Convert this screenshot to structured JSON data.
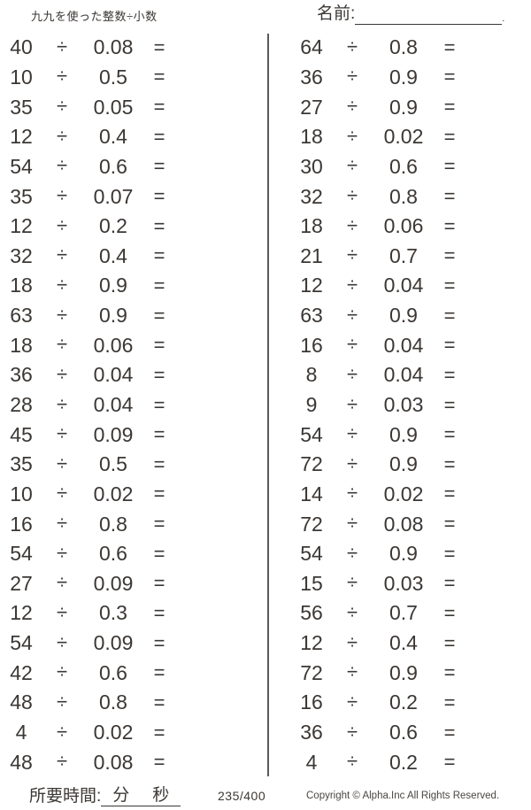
{
  "colors": {
    "ink": "#3b3734",
    "divider": "#5a5a5a",
    "background": "#ffffff"
  },
  "header": {
    "title": "九九を使った整数÷小数",
    "name_label": "名前:",
    "name_line_end": "."
  },
  "problems": {
    "divide_symbol": "÷",
    "equals_symbol": "=",
    "left": [
      {
        "dividend": "40",
        "divisor": "0.08"
      },
      {
        "dividend": "10",
        "divisor": "0.5"
      },
      {
        "dividend": "35",
        "divisor": "0.05"
      },
      {
        "dividend": "12",
        "divisor": "0.4"
      },
      {
        "dividend": "54",
        "divisor": "0.6"
      },
      {
        "dividend": "35",
        "divisor": "0.07"
      },
      {
        "dividend": "12",
        "divisor": "0.2"
      },
      {
        "dividend": "32",
        "divisor": "0.4"
      },
      {
        "dividend": "18",
        "divisor": "0.9"
      },
      {
        "dividend": "63",
        "divisor": "0.9"
      },
      {
        "dividend": "18",
        "divisor": "0.06"
      },
      {
        "dividend": "36",
        "divisor": "0.04"
      },
      {
        "dividend": "28",
        "divisor": "0.04"
      },
      {
        "dividend": "45",
        "divisor": "0.09"
      },
      {
        "dividend": "35",
        "divisor": "0.5"
      },
      {
        "dividend": "10",
        "divisor": "0.02"
      },
      {
        "dividend": "16",
        "divisor": "0.8"
      },
      {
        "dividend": "54",
        "divisor": "0.6"
      },
      {
        "dividend": "27",
        "divisor": "0.09"
      },
      {
        "dividend": "12",
        "divisor": "0.3"
      },
      {
        "dividend": "54",
        "divisor": "0.09"
      },
      {
        "dividend": "42",
        "divisor": "0.6"
      },
      {
        "dividend": "48",
        "divisor": "0.8"
      },
      {
        "dividend": "4",
        "divisor": "0.02"
      },
      {
        "dividend": "48",
        "divisor": "0.08"
      }
    ],
    "right": [
      {
        "dividend": "64",
        "divisor": "0.8"
      },
      {
        "dividend": "36",
        "divisor": "0.9"
      },
      {
        "dividend": "27",
        "divisor": "0.9"
      },
      {
        "dividend": "18",
        "divisor": "0.02"
      },
      {
        "dividend": "30",
        "divisor": "0.6"
      },
      {
        "dividend": "32",
        "divisor": "0.8"
      },
      {
        "dividend": "18",
        "divisor": "0.06"
      },
      {
        "dividend": "21",
        "divisor": "0.7"
      },
      {
        "dividend": "12",
        "divisor": "0.04"
      },
      {
        "dividend": "63",
        "divisor": "0.9"
      },
      {
        "dividend": "16",
        "divisor": "0.04"
      },
      {
        "dividend": "8",
        "divisor": "0.04"
      },
      {
        "dividend": "9",
        "divisor": "0.03"
      },
      {
        "dividend": "54",
        "divisor": "0.9"
      },
      {
        "dividend": "72",
        "divisor": "0.9"
      },
      {
        "dividend": "14",
        "divisor": "0.02"
      },
      {
        "dividend": "72",
        "divisor": "0.08"
      },
      {
        "dividend": "54",
        "divisor": "0.9"
      },
      {
        "dividend": "15",
        "divisor": "0.03"
      },
      {
        "dividend": "56",
        "divisor": "0.7"
      },
      {
        "dividend": "12",
        "divisor": "0.4"
      },
      {
        "dividend": "72",
        "divisor": "0.9"
      },
      {
        "dividend": "16",
        "divisor": "0.2"
      },
      {
        "dividend": "36",
        "divisor": "0.6"
      },
      {
        "dividend": "4",
        "divisor": "0.2"
      }
    ]
  },
  "footer": {
    "time_label": "所要時間:",
    "minutes_label": "分",
    "seconds_label": "秒",
    "page_number": "235/400",
    "copyright": "Copyright © Alpha.Inc All Rights Reserved."
  }
}
